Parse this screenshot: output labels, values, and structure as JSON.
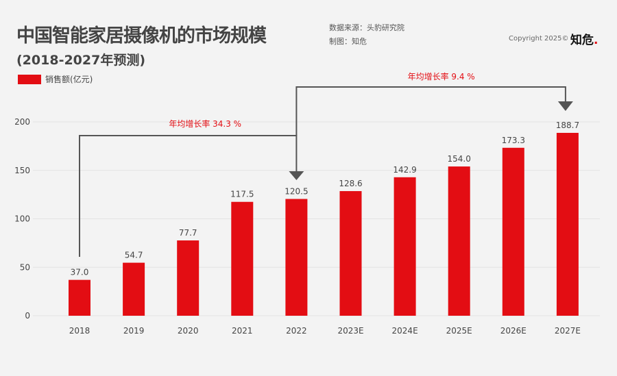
{
  "header": {
    "title": "中国智能家居摄像机的市场规模",
    "subtitle": "(2018-2027年预测)",
    "source": "数据来源：头豹研究院",
    "maker": "制图：知危",
    "copyright": "Copyright 2025©",
    "logo": "知危"
  },
  "colors": {
    "bar": "#e30d13",
    "annotation": "#e30d13",
    "bracket": "#555555"
  },
  "chart_data": {
    "type": "bar",
    "title": "中国智能家居摄像机的市场规模",
    "categories": [
      "2018",
      "2019",
      "2020",
      "2021",
      "2022",
      "2023E",
      "2024E",
      "2025E",
      "2026E",
      "2027E"
    ],
    "series": [
      {
        "name": "销售额(亿元)",
        "values": [
          37.0,
          54.7,
          77.7,
          117.5,
          120.5,
          128.6,
          142.9,
          154.0,
          173.3,
          188.7
        ]
      }
    ],
    "value_labels": [
      "37.0",
      "54.7",
      "77.7",
      "117.5",
      "120.5",
      "128.6",
      "142.9",
      "154.0",
      "173.3",
      "188.7"
    ],
    "yticks": [
      "0",
      "50",
      "100",
      "150",
      "200"
    ],
    "ylim": [
      0,
      200
    ],
    "legend": "top-left",
    "annotations": [
      {
        "text": "年均增长率  34.3 %",
        "from": "2018",
        "to": "2022"
      },
      {
        "text": "年均增长率  9.4 %",
        "from": "2022",
        "to": "2027E"
      }
    ]
  }
}
